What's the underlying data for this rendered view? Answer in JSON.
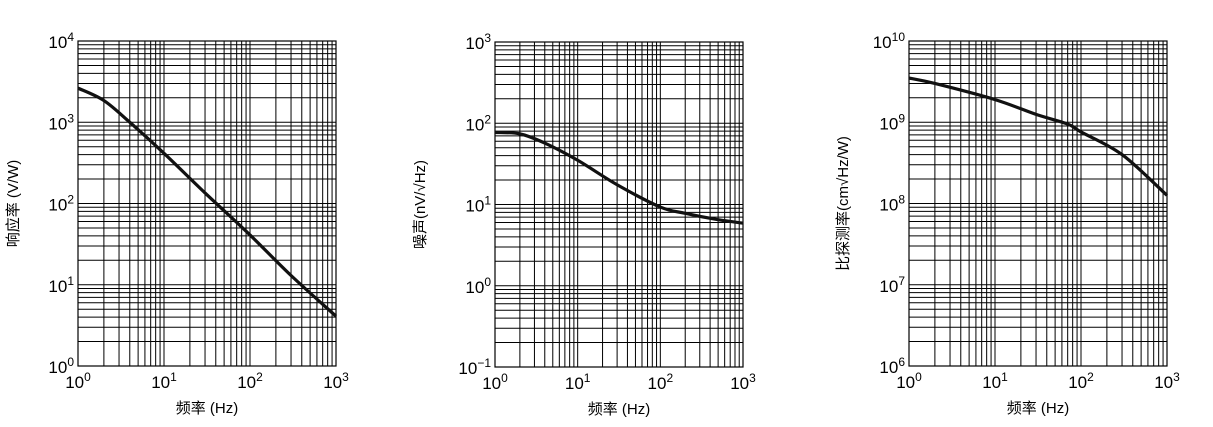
{
  "chart_data": [
    {
      "type": "line",
      "xlabel": "频率 (Hz)",
      "ylabel": "响应率 (V/W)",
      "xscale": "log",
      "yscale": "log",
      "xlim": [
        1,
        1000
      ],
      "ylim": [
        1,
        10000
      ],
      "grid": true,
      "xticks": [
        {
          "base": "10",
          "exp": "0"
        },
        {
          "base": "10",
          "exp": "1"
        },
        {
          "base": "10",
          "exp": "2"
        },
        {
          "base": "10",
          "exp": "3"
        }
      ],
      "yticks": [
        {
          "base": "10",
          "exp": "0"
        },
        {
          "base": "10",
          "exp": "1"
        },
        {
          "base": "10",
          "exp": "2"
        },
        {
          "base": "10",
          "exp": "3"
        },
        {
          "base": "10",
          "exp": "4"
        }
      ],
      "series": [
        {
          "x": [
            1,
            2,
            4,
            10,
            30,
            100,
            300,
            1000
          ],
          "y": [
            2630,
            1850,
            1000,
            415,
            135,
            41,
            13,
            4.1
          ]
        }
      ]
    },
    {
      "type": "line",
      "xlabel": "频率 (Hz)",
      "ylabel": "噪声(nV/√Hz)",
      "xscale": "log",
      "yscale": "log",
      "xlim": [
        1,
        1000
      ],
      "ylim": [
        0.1,
        1000
      ],
      "grid": true,
      "xticks": [
        {
          "base": "10",
          "exp": "0"
        },
        {
          "base": "10",
          "exp": "1"
        },
        {
          "base": "10",
          "exp": "2"
        },
        {
          "base": "10",
          "exp": "3"
        }
      ],
      "yticks": [
        {
          "base": "10",
          "exp": "−1"
        },
        {
          "base": "10",
          "exp": "0"
        },
        {
          "base": "10",
          "exp": "1"
        },
        {
          "base": "10",
          "exp": "2"
        },
        {
          "base": "10",
          "exp": "3"
        }
      ],
      "series": [
        {
          "x": [
            1,
            2,
            4,
            10,
            30,
            100,
            200,
            500,
            1000
          ],
          "y": [
            77,
            74,
            57,
            35,
            17.5,
            9.3,
            7.8,
            6.5,
            5.9
          ]
        }
      ]
    },
    {
      "type": "line",
      "xlabel": "频率 (Hz)",
      "ylabel": "比探测率(cm√Hz/W)",
      "xscale": "log",
      "yscale": "log",
      "xlim": [
        1,
        1000
      ],
      "ylim": [
        1000000,
        10000000000
      ],
      "grid": true,
      "xticks": [
        {
          "base": "10",
          "exp": "0"
        },
        {
          "base": "10",
          "exp": "1"
        },
        {
          "base": "10",
          "exp": "2"
        },
        {
          "base": "10",
          "exp": "3"
        }
      ],
      "yticks": [
        {
          "base": "10",
          "exp": "6"
        },
        {
          "base": "10",
          "exp": "7"
        },
        {
          "base": "10",
          "exp": "8"
        },
        {
          "base": "10",
          "exp": "9"
        },
        {
          "base": "10",
          "exp": "10"
        }
      ],
      "series": [
        {
          "x": [
            1,
            2,
            10,
            30,
            70,
            100,
            300,
            1000
          ],
          "y": [
            3500000000,
            3000000000,
            1900000000,
            1250000000,
            950000000,
            760000000,
            400000000,
            126000000
          ]
        }
      ]
    }
  ]
}
